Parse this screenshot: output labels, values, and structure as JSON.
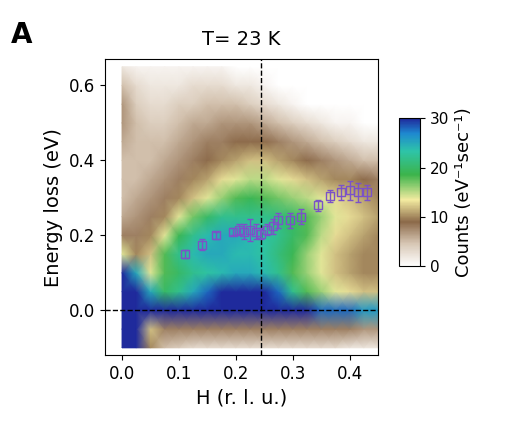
{
  "chart_data": {
    "type": "heatmap",
    "panel_label": "A",
    "title": "T= 23 K",
    "x_label": "H (r. l. u.)",
    "y_label": "Energy loss (eV)",
    "xlim": [
      -0.03,
      0.45
    ],
    "ylim": [
      -0.12,
      0.67
    ],
    "xticks": [
      {
        "value": 0.0,
        "label": "0.0"
      },
      {
        "value": 0.1,
        "label": "0.1"
      },
      {
        "value": 0.2,
        "label": "0.2"
      },
      {
        "value": 0.3,
        "label": "0.3"
      },
      {
        "value": 0.4,
        "label": "0.4"
      }
    ],
    "yticks": [
      {
        "value": 0.0,
        "label": "0.0"
      },
      {
        "value": 0.2,
        "label": "0.2"
      },
      {
        "value": 0.4,
        "label": "0.4"
      },
      {
        "value": 0.6,
        "label": "0.6"
      }
    ],
    "x": [
      0.0,
      0.025,
      0.05,
      0.075,
      0.1,
      0.125,
      0.15,
      0.175,
      0.2,
      0.225,
      0.25,
      0.275,
      0.3,
      0.325,
      0.35,
      0.375,
      0.4,
      0.425,
      0.45
    ],
    "y": [
      -0.1,
      -0.05,
      0.0,
      0.05,
      0.1,
      0.15,
      0.2,
      0.25,
      0.3,
      0.35,
      0.4,
      0.45,
      0.5,
      0.55,
      0.6,
      0.65
    ],
    "cells": [
      [
        30,
        30,
        10,
        5,
        4,
        3,
        3,
        3,
        3,
        3,
        3,
        3,
        3,
        3,
        3,
        3,
        2,
        2,
        2
      ],
      [
        30,
        30,
        12,
        8,
        8,
        8,
        8,
        8,
        8,
        8,
        8,
        8,
        8,
        8,
        8,
        8,
        8,
        7,
        7
      ],
      [
        30,
        30,
        30,
        30,
        30,
        30,
        30,
        30,
        30,
        30,
        30,
        30,
        30,
        30,
        28,
        28,
        28,
        26,
        26
      ],
      [
        30,
        30,
        25,
        20,
        22,
        25,
        28,
        30,
        30,
        30,
        30,
        28,
        22,
        18,
        16,
        14,
        13,
        12,
        12
      ],
      [
        30,
        25,
        14,
        18,
        20,
        22,
        23,
        24,
        25,
        25,
        24,
        22,
        18,
        16,
        14,
        12,
        11,
        10,
        10
      ],
      [
        14,
        10,
        12,
        18,
        22,
        24,
        25,
        25,
        24,
        24,
        23,
        21,
        19,
        16,
        14,
        12,
        11,
        10,
        10
      ],
      [
        8,
        8,
        10,
        14,
        19,
        22,
        24,
        25,
        25,
        24,
        23,
        22,
        20,
        18,
        15,
        13,
        12,
        11,
        10
      ],
      [
        6,
        7,
        8,
        10,
        14,
        17,
        20,
        22,
        22,
        22,
        22,
        21,
        20,
        18,
        16,
        14,
        13,
        12,
        11
      ],
      [
        5,
        6,
        7,
        8,
        10,
        12,
        14,
        16,
        18,
        19,
        18,
        17,
        16,
        15,
        14,
        13,
        12,
        11,
        10
      ],
      [
        5,
        5,
        6,
        7,
        8,
        10,
        11,
        13,
        14,
        15,
        15,
        14,
        13,
        12,
        11,
        10,
        10,
        9,
        8
      ],
      [
        5,
        5,
        5,
        6,
        7,
        8,
        9,
        10,
        11,
        12,
        12,
        11,
        10,
        9,
        8,
        7,
        6,
        5,
        5
      ],
      [
        6,
        5,
        5,
        5,
        6,
        7,
        8,
        8,
        9,
        9,
        9,
        8,
        7,
        6,
        5,
        4,
        3,
        2,
        2
      ],
      [
        7,
        5,
        4,
        4,
        5,
        6,
        6,
        7,
        7,
        7,
        6,
        5,
        4,
        3,
        2,
        1,
        1,
        0,
        0
      ],
      [
        7,
        4,
        3,
        3,
        4,
        4,
        5,
        5,
        5,
        4,
        3,
        2,
        1,
        0,
        0,
        0,
        0,
        0,
        0
      ],
      [
        5,
        3,
        2,
        2,
        2,
        3,
        3,
        3,
        2,
        2,
        1,
        0,
        0,
        0,
        0,
        0,
        0,
        0,
        0
      ],
      [
        2,
        1,
        1,
        1,
        1,
        1,
        1,
        1,
        0,
        0,
        0,
        0,
        0,
        0,
        0,
        0,
        0,
        0,
        0
      ]
    ],
    "colorbar": {
      "label": "Counts (eV⁻¹sec⁻¹)",
      "range": [
        0,
        30
      ],
      "ticks": [
        0,
        10,
        20,
        30
      ]
    },
    "reference_lines": {
      "x": [
        0.245
      ],
      "y": [
        0.0
      ]
    },
    "series": [
      {
        "type": "errorbar",
        "color": "#7b52c8",
        "marker": "s",
        "x": [
          0.11,
          0.14,
          0.165,
          0.195,
          0.205,
          0.215,
          0.225,
          0.235,
          0.245,
          0.255,
          0.265,
          0.275,
          0.295,
          0.315,
          0.345,
          0.365,
          0.385,
          0.4,
          0.415,
          0.43
        ],
        "values": [
          0.15,
          0.175,
          0.2,
          0.21,
          0.215,
          0.21,
          0.215,
          0.21,
          0.205,
          0.215,
          0.225,
          0.24,
          0.24,
          0.25,
          0.28,
          0.305,
          0.315,
          0.32,
          0.315,
          0.315
        ],
        "errors": [
          0.01,
          0.015,
          0.01,
          0.01,
          0.015,
          0.02,
          0.03,
          0.02,
          0.015,
          0.015,
          0.02,
          0.02,
          0.02,
          0.02,
          0.015,
          0.015,
          0.02,
          0.025,
          0.025,
          0.02
        ]
      }
    ]
  }
}
